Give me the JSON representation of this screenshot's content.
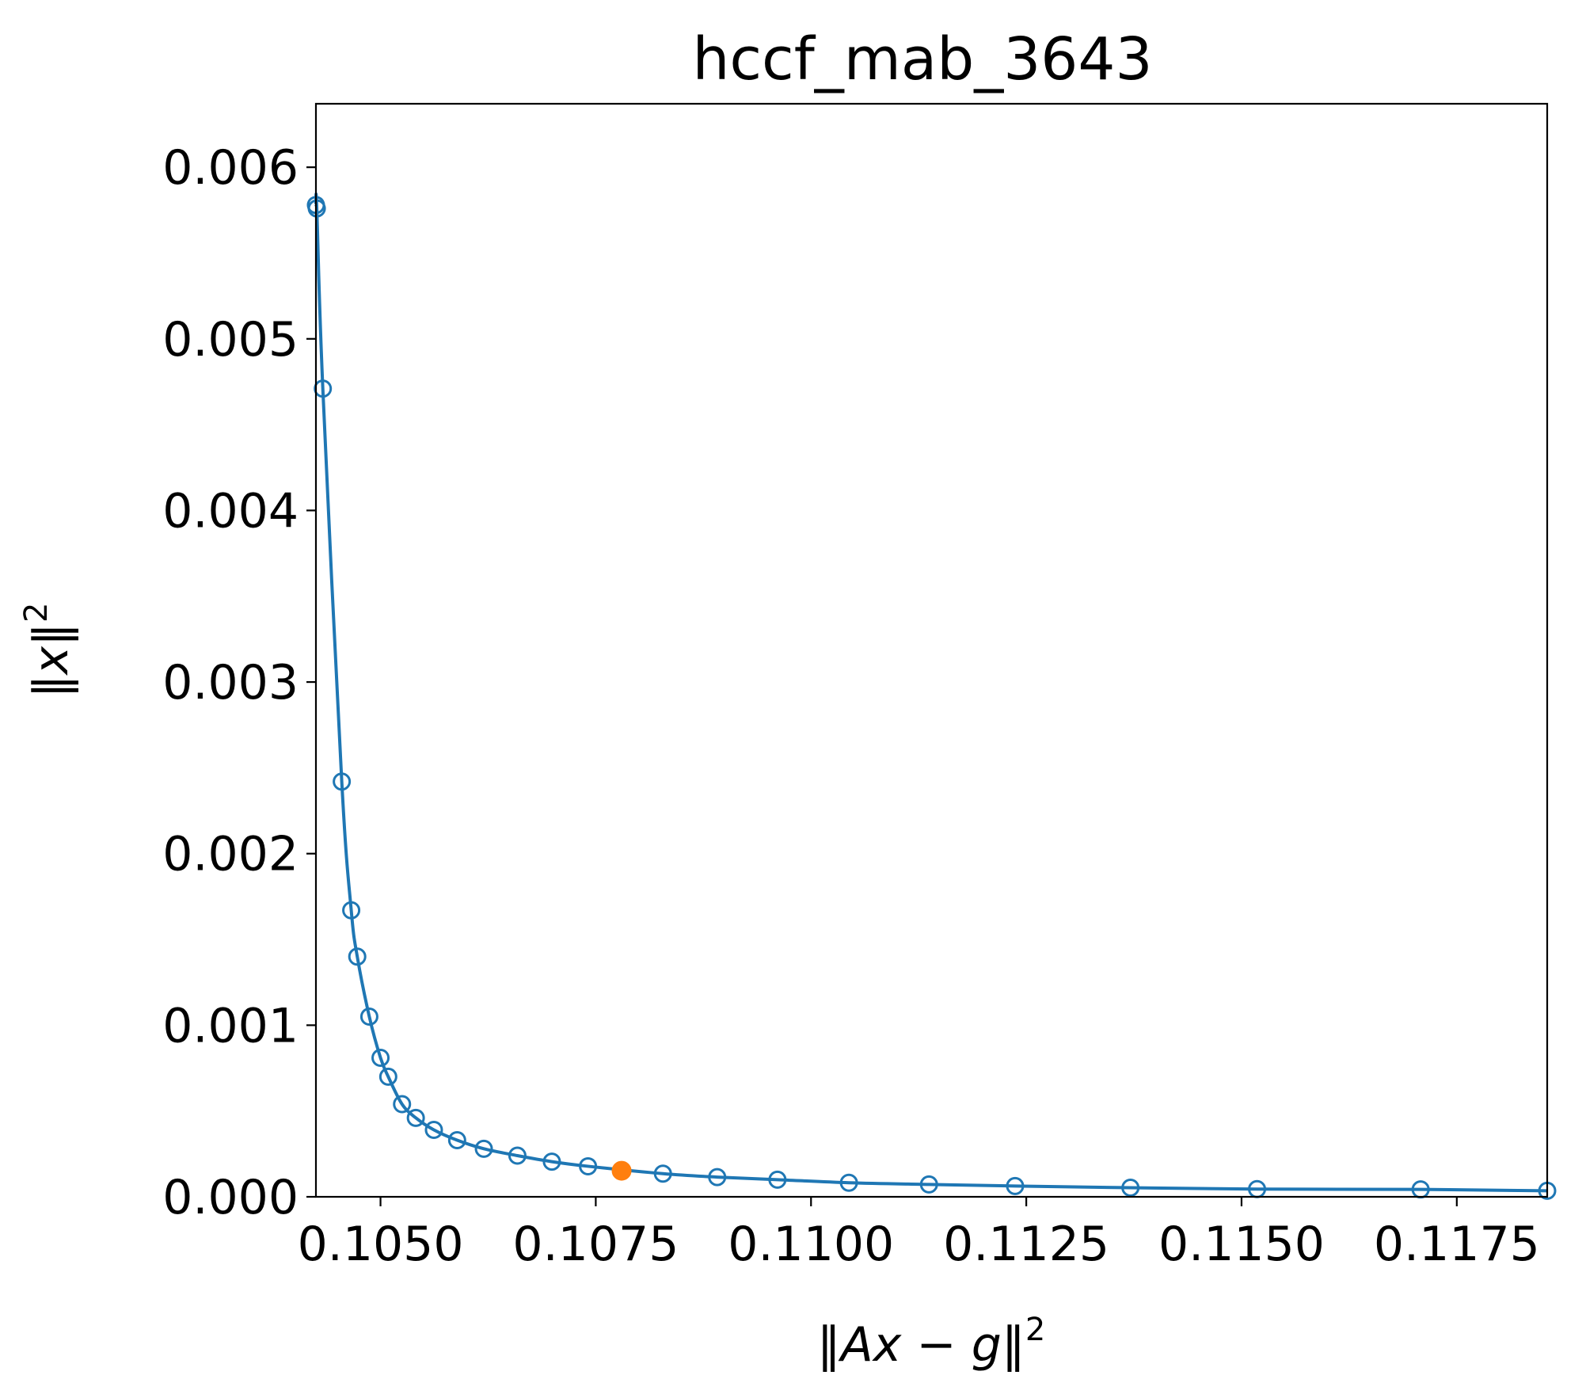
{
  "chart_data": {
    "type": "line",
    "title": "hccf_mab_3643",
    "xlabel_parts": [
      "‖",
      "Ax",
      " − ",
      "g",
      "‖",
      "2"
    ],
    "ylabel_parts": [
      "‖",
      "x",
      "‖",
      "2"
    ],
    "xlim": [
      0.10425,
      0.11855
    ],
    "ylim": [
      0.0,
      0.00637
    ],
    "xticks": [
      0.105,
      0.1075,
      0.11,
      0.1125,
      0.115,
      0.1175
    ],
    "xtick_labels": [
      "0.1050",
      "0.1075",
      "0.1100",
      "0.1125",
      "0.1150",
      "0.1175"
    ],
    "yticks": [
      0.0,
      0.001,
      0.002,
      0.003,
      0.004,
      0.005,
      0.006
    ],
    "ytick_labels": [
      "0.000",
      "0.001",
      "0.002",
      "0.003",
      "0.004",
      "0.005",
      "0.006"
    ],
    "grid": false,
    "legend": "none",
    "series": [
      {
        "marker": "open-circle",
        "color": "#1f77b4",
        "x": [
          0.10425,
          0.10426,
          0.10433,
          0.10455,
          0.10466,
          0.10473,
          0.10487,
          0.105,
          0.10509,
          0.10525,
          0.10541,
          0.10562,
          0.10589,
          0.1062,
          0.10659,
          0.10699,
          0.10741,
          0.10828,
          0.10891,
          0.10961,
          0.11044,
          0.11137,
          0.11237,
          0.11371,
          0.11518,
          0.11708,
          0.11855
        ],
        "y": [
          0.00578,
          0.00576,
          0.00471,
          0.00242,
          0.00167,
          0.0014,
          0.00105,
          0.00081,
          0.0007,
          0.00054,
          0.00046,
          0.00039,
          0.00033,
          0.00028,
          0.00024,
          0.000205,
          0.000178,
          0.000135,
          0.000115,
          0.0001,
          8.2e-05,
          7.2e-05,
          6.3e-05,
          5.3e-05,
          4.5e-05,
          4.3e-05,
          3.5e-05
        ]
      },
      {
        "marker": "filled-circle",
        "color": "#ff7f0e",
        "x": [
          0.1078
        ],
        "y": [
          0.000152
        ]
      }
    ]
  }
}
